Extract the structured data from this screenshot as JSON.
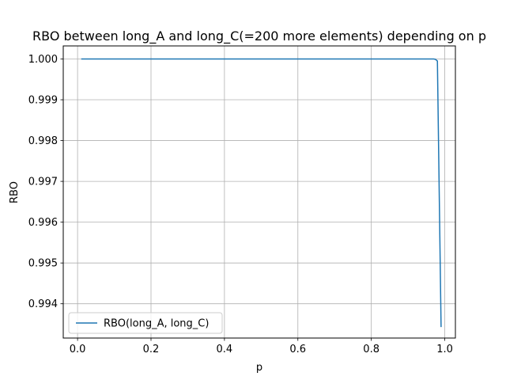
{
  "chart_data": {
    "type": "line",
    "title": "RBO between long_A and long_C(=200 more elements) depending on p",
    "xlabel": "p",
    "ylabel": "RBO",
    "xlim": [
      -0.039,
      1.029
    ],
    "ylim": [
      0.99316,
      1.00032
    ],
    "xticks": [
      0.0,
      0.2,
      0.4,
      0.6,
      0.8,
      1.0
    ],
    "xtick_labels": [
      "0.0",
      "0.2",
      "0.4",
      "0.6",
      "0.8",
      "1.0"
    ],
    "yticks": [
      0.994,
      0.995,
      0.996,
      0.997,
      0.998,
      0.999,
      1.0
    ],
    "ytick_labels": [
      "0.994",
      "0.995",
      "0.996",
      "0.997",
      "0.998",
      "0.999",
      "1.000"
    ],
    "grid": true,
    "legend_position": "lower-left",
    "colors": {
      "series": "#1f77b4",
      "grid": "#b0b0b0",
      "axes": "#000000"
    },
    "series": [
      {
        "name": "RBO(long_A, long_C)",
        "x": [
          0.01,
          0.1,
          0.2,
          0.3,
          0.4,
          0.5,
          0.6,
          0.7,
          0.8,
          0.9,
          0.95,
          0.96,
          0.97,
          0.975,
          0.98,
          0.99
        ],
        "y": [
          1.0,
          1.0,
          1.0,
          1.0,
          1.0,
          1.0,
          1.0,
          1.0,
          1.0,
          1.0,
          1.0,
          1.0,
          1.0,
          0.99999,
          0.99995,
          0.99343
        ]
      }
    ]
  }
}
